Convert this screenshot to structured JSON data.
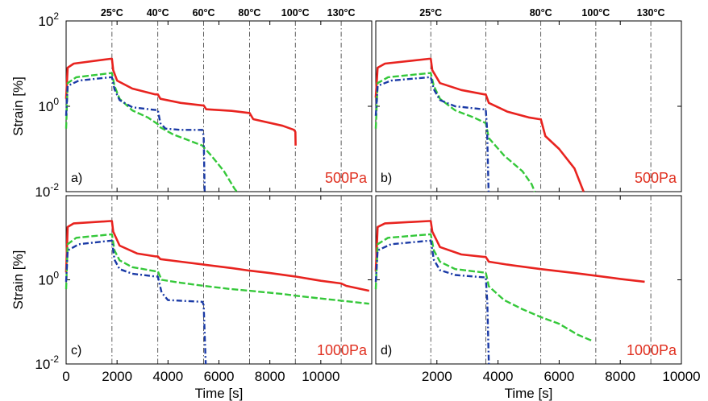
{
  "colors": {
    "red": "#e8231f",
    "green": "#35c83a",
    "blue": "#1a3aa6",
    "axis": "#000000",
    "stress_label": "#e03020"
  },
  "chart_data": [
    {
      "type": "line",
      "panel_label": "a)",
      "stress_label": "500Pa",
      "ylabel": "Strain [%]",
      "xlabel": "",
      "yscale": "log",
      "ylim": [
        0.01,
        100
      ],
      "y_ticks": [
        {
          "value": 100,
          "base": "10",
          "exp": "2"
        },
        {
          "value": 1,
          "base": "10",
          "exp": "0"
        },
        {
          "value": 0.01,
          "base": "10",
          "exp": "-2"
        }
      ],
      "xlim": [
        0,
        12000
      ],
      "x_ticks": [],
      "temperature_marks": [
        {
          "x": 1800,
          "label": "25°C"
        },
        {
          "x": 3600,
          "label": "40°C"
        },
        {
          "x": 5400,
          "label": "60°C"
        },
        {
          "x": 7200,
          "label": "80°C"
        },
        {
          "x": 9000,
          "label": "100°C"
        },
        {
          "x": 10800,
          "label": "130°C"
        }
      ],
      "series": [
        {
          "color": "red",
          "style": "solid",
          "points": [
            [
              0,
              1.5
            ],
            [
              60,
              8
            ],
            [
              300,
              10
            ],
            [
              1750,
              13
            ],
            [
              1800,
              13
            ],
            [
              1850,
              7
            ],
            [
              2000,
              4
            ],
            [
              2600,
              2.6
            ],
            [
              3500,
              1.9
            ],
            [
              3600,
              1.9
            ],
            [
              3700,
              1.5
            ],
            [
              4500,
              1.2
            ],
            [
              5350,
              1.05
            ],
            [
              5400,
              1.05
            ],
            [
              5500,
              0.85
            ],
            [
              6500,
              0.78
            ],
            [
              7150,
              0.7
            ],
            [
              7200,
              0.7
            ],
            [
              7350,
              0.5
            ],
            [
              8500,
              0.35
            ],
            [
              8950,
              0.28
            ],
            [
              9000,
              0.25
            ],
            [
              9010,
              0.12
            ]
          ]
        },
        {
          "color": "green",
          "style": "dashed",
          "points": [
            [
              0,
              0.3
            ],
            [
              60,
              3.5
            ],
            [
              400,
              4.8
            ],
            [
              1750,
              6
            ],
            [
              1800,
              6
            ],
            [
              1900,
              3
            ],
            [
              2100,
              1.5
            ],
            [
              2600,
              0.8
            ],
            [
              3200,
              0.55
            ],
            [
              3550,
              0.4
            ],
            [
              3600,
              0.38
            ],
            [
              3700,
              0.32
            ],
            [
              4200,
              0.22
            ],
            [
              5350,
              0.12
            ],
            [
              5400,
              0.11
            ],
            [
              5700,
              0.07
            ],
            [
              6200,
              0.03
            ],
            [
              6600,
              0.012
            ],
            [
              6700,
              0.01
            ]
          ]
        },
        {
          "color": "blue",
          "style": "dashdot",
          "points": [
            [
              0,
              0.6
            ],
            [
              60,
              3
            ],
            [
              500,
              4
            ],
            [
              1750,
              4.8
            ],
            [
              1800,
              4.8
            ],
            [
              1900,
              2.5
            ],
            [
              2100,
              1.4
            ],
            [
              2600,
              0.95
            ],
            [
              3500,
              0.82
            ],
            [
              3600,
              0.82
            ],
            [
              3700,
              0.4
            ],
            [
              3900,
              0.3
            ],
            [
              4500,
              0.28
            ],
            [
              5350,
              0.28
            ],
            [
              5400,
              0.2
            ],
            [
              5440,
              0.01
            ]
          ]
        }
      ]
    },
    {
      "type": "line",
      "panel_label": "b)",
      "stress_label": "500Pa",
      "ylabel": "",
      "xlabel": "",
      "yscale": "log",
      "ylim": [
        0.01,
        100
      ],
      "xlim": [
        0,
        10000
      ],
      "x_ticks": [],
      "temperature_marks": [
        {
          "x": 1800,
          "label": "25°C"
        },
        {
          "x": 3600,
          "label": ""
        },
        {
          "x": 5400,
          "label": "80°C"
        },
        {
          "x": 7200,
          "label": "100°C"
        },
        {
          "x": 9000,
          "label": "130°C"
        }
      ],
      "series": [
        {
          "color": "red",
          "style": "solid",
          "points": [
            [
              0,
              1.6
            ],
            [
              60,
              8
            ],
            [
              300,
              10
            ],
            [
              1750,
              13
            ],
            [
              1800,
              13
            ],
            [
              1850,
              7
            ],
            [
              2100,
              3.5
            ],
            [
              2800,
              2.4
            ],
            [
              3550,
              1.9
            ],
            [
              3600,
              1.9
            ],
            [
              3700,
              1.2
            ],
            [
              4300,
              0.75
            ],
            [
              5000,
              0.55
            ],
            [
              5350,
              0.5
            ],
            [
              5400,
              0.5
            ],
            [
              5550,
              0.2
            ],
            [
              6000,
              0.1
            ],
            [
              6500,
              0.035
            ],
            [
              6800,
              0.01
            ]
          ]
        },
        {
          "color": "green",
          "style": "dashed",
          "points": [
            [
              0,
              0.3
            ],
            [
              60,
              3.5
            ],
            [
              400,
              4.8
            ],
            [
              1750,
              6
            ],
            [
              1800,
              6
            ],
            [
              1900,
              3
            ],
            [
              2100,
              1.5
            ],
            [
              2600,
              0.8
            ],
            [
              3200,
              0.55
            ],
            [
              3550,
              0.42
            ],
            [
              3600,
              0.4
            ],
            [
              3700,
              0.18
            ],
            [
              4200,
              0.07
            ],
            [
              4800,
              0.03
            ],
            [
              5100,
              0.015
            ],
            [
              5200,
              0.01
            ]
          ]
        },
        {
          "color": "blue",
          "style": "dashdot",
          "points": [
            [
              0,
              0.6
            ],
            [
              60,
              3
            ],
            [
              500,
              4
            ],
            [
              1750,
              4.8
            ],
            [
              1800,
              4.8
            ],
            [
              1900,
              2.5
            ],
            [
              2100,
              1.4
            ],
            [
              2600,
              1
            ],
            [
              3500,
              0.85
            ],
            [
              3600,
              0.85
            ],
            [
              3640,
              0.3
            ],
            [
              3690,
              0.01
            ]
          ]
        }
      ]
    },
    {
      "type": "line",
      "panel_label": "c)",
      "stress_label": "1000Pa",
      "ylabel": "Strain [%]",
      "xlabel": "Time [s]",
      "yscale": "log",
      "ylim": [
        0.01,
        100
      ],
      "y_ticks": [
        {
          "value": 1,
          "base": "10",
          "exp": "0"
        },
        {
          "value": 0.01,
          "base": "10",
          "exp": "-2"
        }
      ],
      "xlim": [
        0,
        12000
      ],
      "x_ticks": [
        "0",
        "2000",
        "4000",
        "6000",
        "8000",
        "10000"
      ],
      "temperature_marks": [
        {
          "x": 1800,
          "label": ""
        },
        {
          "x": 3600,
          "label": ""
        },
        {
          "x": 5400,
          "label": ""
        },
        {
          "x": 7200,
          "label": ""
        },
        {
          "x": 9000,
          "label": ""
        },
        {
          "x": 10800,
          "label": ""
        }
      ],
      "series": [
        {
          "color": "red",
          "style": "solid",
          "points": [
            [
              0,
              1.5
            ],
            [
              60,
              18
            ],
            [
              300,
              22
            ],
            [
              1750,
              25
            ],
            [
              1800,
              25
            ],
            [
              1850,
              14
            ],
            [
              2100,
              6.5
            ],
            [
              2800,
              4.2
            ],
            [
              3500,
              3.6
            ],
            [
              3600,
              3.6
            ],
            [
              3700,
              3.1
            ],
            [
              4500,
              2.7
            ],
            [
              5400,
              2.3
            ],
            [
              6500,
              1.9
            ],
            [
              7200,
              1.65
            ],
            [
              8000,
              1.45
            ],
            [
              9000,
              1.2
            ],
            [
              10000,
              0.95
            ],
            [
              10800,
              0.82
            ],
            [
              11000,
              0.72
            ],
            [
              11900,
              0.55
            ]
          ]
        },
        {
          "color": "green",
          "style": "dashed",
          "points": [
            [
              0,
              0.6
            ],
            [
              60,
              7
            ],
            [
              400,
              10
            ],
            [
              1750,
              12
            ],
            [
              1800,
              12
            ],
            [
              1900,
              5
            ],
            [
              2100,
              2.9
            ],
            [
              2600,
              2
            ],
            [
              3500,
              1.6
            ],
            [
              3600,
              1.6
            ],
            [
              3750,
              1
            ],
            [
              4500,
              0.85
            ],
            [
              5400,
              0.72
            ],
            [
              6500,
              0.6
            ],
            [
              7200,
              0.55
            ],
            [
              8500,
              0.46
            ],
            [
              9000,
              0.42
            ],
            [
              10000,
              0.36
            ],
            [
              10800,
              0.32
            ],
            [
              11900,
              0.27
            ]
          ]
        },
        {
          "color": "blue",
          "style": "dashdot",
          "points": [
            [
              0,
              0.9
            ],
            [
              60,
              5
            ],
            [
              500,
              7
            ],
            [
              1750,
              8.5
            ],
            [
              1800,
              8.5
            ],
            [
              1900,
              3
            ],
            [
              2100,
              1.8
            ],
            [
              2600,
              1.4
            ],
            [
              3500,
              1.2
            ],
            [
              3600,
              1.2
            ],
            [
              3750,
              0.5
            ],
            [
              4000,
              0.33
            ],
            [
              5350,
              0.3
            ],
            [
              5400,
              0.25
            ],
            [
              5480,
              0.01
            ]
          ]
        }
      ]
    },
    {
      "type": "line",
      "panel_label": "d)",
      "stress_label": "1000Pa",
      "ylabel": "",
      "xlabel": "Time [s]",
      "yscale": "log",
      "ylim": [
        0.01,
        100
      ],
      "xlim": [
        0,
        10000
      ],
      "x_ticks": [
        "2000",
        "4000",
        "6000",
        "8000",
        "10000"
      ],
      "temperature_marks": [
        {
          "x": 1800,
          "label": ""
        },
        {
          "x": 3600,
          "label": ""
        },
        {
          "x": 5400,
          "label": ""
        },
        {
          "x": 7200,
          "label": ""
        },
        {
          "x": 9000,
          "label": ""
        }
      ],
      "series": [
        {
          "color": "red",
          "style": "solid",
          "points": [
            [
              0,
              1.6
            ],
            [
              60,
              18
            ],
            [
              300,
              22
            ],
            [
              1750,
              25
            ],
            [
              1800,
              25
            ],
            [
              1850,
              14
            ],
            [
              2100,
              6
            ],
            [
              2800,
              4
            ],
            [
              3550,
              3.5
            ],
            [
              3600,
              3.5
            ],
            [
              3700,
              2.7
            ],
            [
              4300,
              2.3
            ],
            [
              5400,
              1.8
            ],
            [
              6500,
              1.45
            ],
            [
              7200,
              1.25
            ],
            [
              8000,
              1.05
            ],
            [
              8800,
              0.9
            ]
          ]
        },
        {
          "color": "green",
          "style": "dashed",
          "points": [
            [
              0,
              0.6
            ],
            [
              60,
              7
            ],
            [
              400,
              10
            ],
            [
              1750,
              12
            ],
            [
              1800,
              12
            ],
            [
              1900,
              5
            ],
            [
              2100,
              2.7
            ],
            [
              2600,
              1.8
            ],
            [
              3500,
              1.5
            ],
            [
              3600,
              1.5
            ],
            [
              3700,
              0.7
            ],
            [
              4200,
              0.33
            ],
            [
              4800,
              0.2
            ],
            [
              5400,
              0.13
            ],
            [
              6000,
              0.09
            ],
            [
              6600,
              0.05
            ],
            [
              7100,
              0.035
            ]
          ]
        },
        {
          "color": "blue",
          "style": "dashdot",
          "points": [
            [
              0,
              0.9
            ],
            [
              60,
              5
            ],
            [
              500,
              7
            ],
            [
              1750,
              8.5
            ],
            [
              1800,
              8.5
            ],
            [
              1900,
              3
            ],
            [
              2100,
              1.7
            ],
            [
              2600,
              1.3
            ],
            [
              3500,
              1.15
            ],
            [
              3600,
              1.15
            ],
            [
              3650,
              0.3
            ],
            [
              3700,
              0.01
            ]
          ]
        }
      ]
    }
  ]
}
